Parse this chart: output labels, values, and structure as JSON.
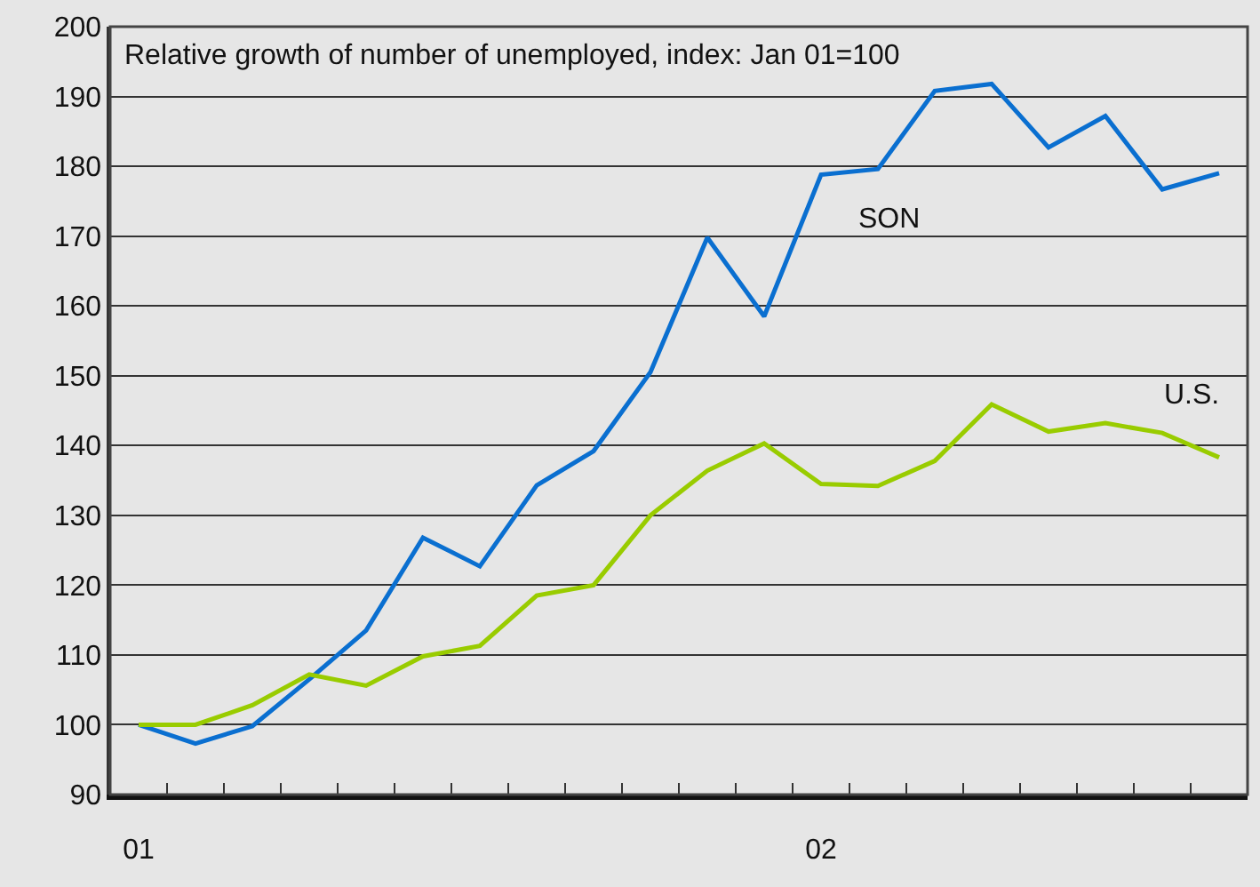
{
  "chart_data": {
    "type": "line",
    "title": "Relative growth of number of unemployed, index: Jan 01=100",
    "categories": [
      "01",
      null,
      null,
      null,
      null,
      null,
      null,
      null,
      null,
      null,
      null,
      null,
      "02",
      null,
      null,
      null,
      null,
      null,
      null,
      null
    ],
    "series": [
      {
        "name": "SON",
        "color": "#0a6fd0",
        "values": [
          100,
          97.3,
          99.8,
          106.5,
          113.5,
          126.8,
          122.7,
          134.3,
          139.2,
          150.5,
          169.8,
          158.5,
          178.8,
          179.6,
          190.8,
          191.8,
          182.7,
          187.2,
          176.7,
          179.0
        ]
      },
      {
        "name": "U.S.",
        "color": "#99cc00",
        "values": [
          100,
          100,
          102.8,
          107.2,
          105.6,
          109.8,
          111.3,
          118.5,
          120.0,
          130.0,
          136.4,
          140.3,
          134.5,
          134.2,
          137.8,
          145.9,
          142.0,
          143.2,
          141.8,
          138.3
        ]
      }
    ],
    "ylim": [
      90,
      200
    ],
    "yticks": [
      90,
      100,
      110,
      120,
      130,
      140,
      150,
      160,
      170,
      180,
      190,
      200
    ],
    "grid": "y",
    "legend": false,
    "marker": "none",
    "line_style": "solid"
  }
}
